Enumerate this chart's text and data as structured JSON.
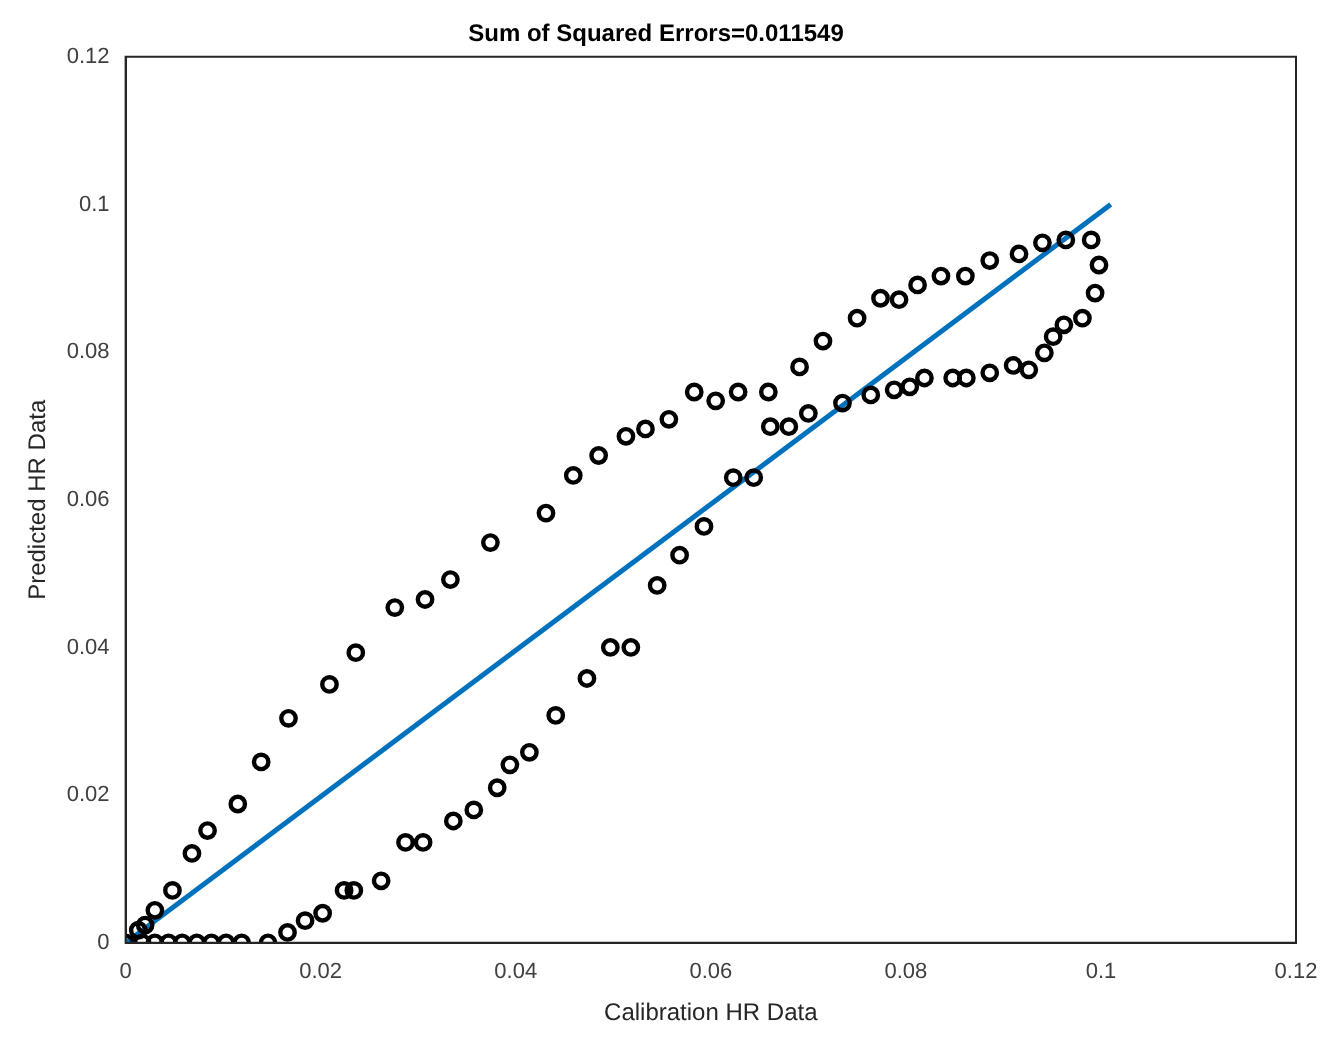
{
  "chart_data": {
    "type": "scatter",
    "title": "Sum of Squared Errors=0.011549",
    "xlabel": "Calibration HR Data",
    "ylabel": "Predicted HR Data",
    "xlim": [
      0,
      0.12
    ],
    "ylim": [
      0,
      0.12
    ],
    "xticks": [
      0,
      0.02,
      0.04,
      0.06,
      0.08,
      0.1,
      0.12
    ],
    "yticks": [
      0,
      0.02,
      0.04,
      0.06,
      0.08,
      0.1,
      0.12
    ],
    "grid": false,
    "legend": false,
    "series": [
      {
        "marker": "circle",
        "color": "#000000",
        "x": [
          0,
          0.0013,
          0.002,
          0.003,
          0.0048,
          0.0068,
          0.0084,
          0.0115,
          0.0139,
          0.0167,
          0.0209,
          0.0236,
          0.0276,
          0.0307,
          0.0333,
          0.0374,
          0.0431,
          0.0459,
          0.0485,
          0.0513,
          0.0533,
          0.0557,
          0.0583,
          0.0605,
          0.0628,
          0.0659,
          0.0691,
          0.0715,
          0.075,
          0.0774,
          0.0793,
          0.0812,
          0.0836,
          0.0861,
          0.0886,
          0.0916,
          0.094,
          0.0964,
          0.099,
          0.0998,
          0.0994,
          0.0981,
          0.0962,
          0.0951,
          0.0942,
          0.0926,
          0.091,
          0.0886,
          0.0862,
          0.0848,
          0.0819,
          0.0804,
          0.0788,
          0.0764,
          0.0735,
          0.07,
          0.068,
          0.0661,
          0.0644,
          0.0623,
          0.0593,
          0.0568,
          0.0545,
          0.0518,
          0.0497,
          0.0473,
          0.0441,
          0.0414,
          0.0394,
          0.0381,
          0.0357,
          0.0336,
          0.0305,
          0.0287,
          0.0262,
          0.0234,
          0.0224,
          0.0202,
          0.0184,
          0.0166,
          0.0146,
          0.0119,
          0.0103,
          0.0088,
          0.0073,
          0.0058,
          0.0044,
          0.003,
          0.0017
        ],
        "values": [
          0,
          0.0017,
          0.0024,
          0.0044,
          0.0071,
          0.0121,
          0.0152,
          0.0188,
          0.0245,
          0.0304,
          0.035,
          0.0393,
          0.0454,
          0.0465,
          0.0492,
          0.0542,
          0.0582,
          0.0633,
          0.066,
          0.0686,
          0.0696,
          0.0709,
          0.0746,
          0.0734,
          0.0746,
          0.0746,
          0.078,
          0.0815,
          0.0846,
          0.0873,
          0.0871,
          0.0891,
          0.0903,
          0.0903,
          0.0924,
          0.0933,
          0.0948,
          0.0952,
          0.0952,
          0.0918,
          0.088,
          0.0846,
          0.0837,
          0.0821,
          0.0799,
          0.0776,
          0.0782,
          0.0772,
          0.0765,
          0.0765,
          0.0765,
          0.0753,
          0.0749,
          0.0742,
          0.0731,
          0.0717,
          0.0699,
          0.0699,
          0.063,
          0.063,
          0.0564,
          0.0525,
          0.0484,
          0.04,
          0.04,
          0.0358,
          0.0308,
          0.0258,
          0.0241,
          0.021,
          0.018,
          0.0165,
          0.0136,
          0.0136,
          0.0084,
          0.0071,
          0.0071,
          0.004,
          0.003,
          0.0014,
          0,
          0,
          0,
          0,
          0,
          0,
          0,
          0,
          0
        ]
      },
      {
        "type": "line",
        "marker": "none",
        "line_style": "solid",
        "color": "#0072bd",
        "x": [
          0,
          0.101
        ],
        "values": [
          0,
          0.1
        ]
      }
    ]
  }
}
